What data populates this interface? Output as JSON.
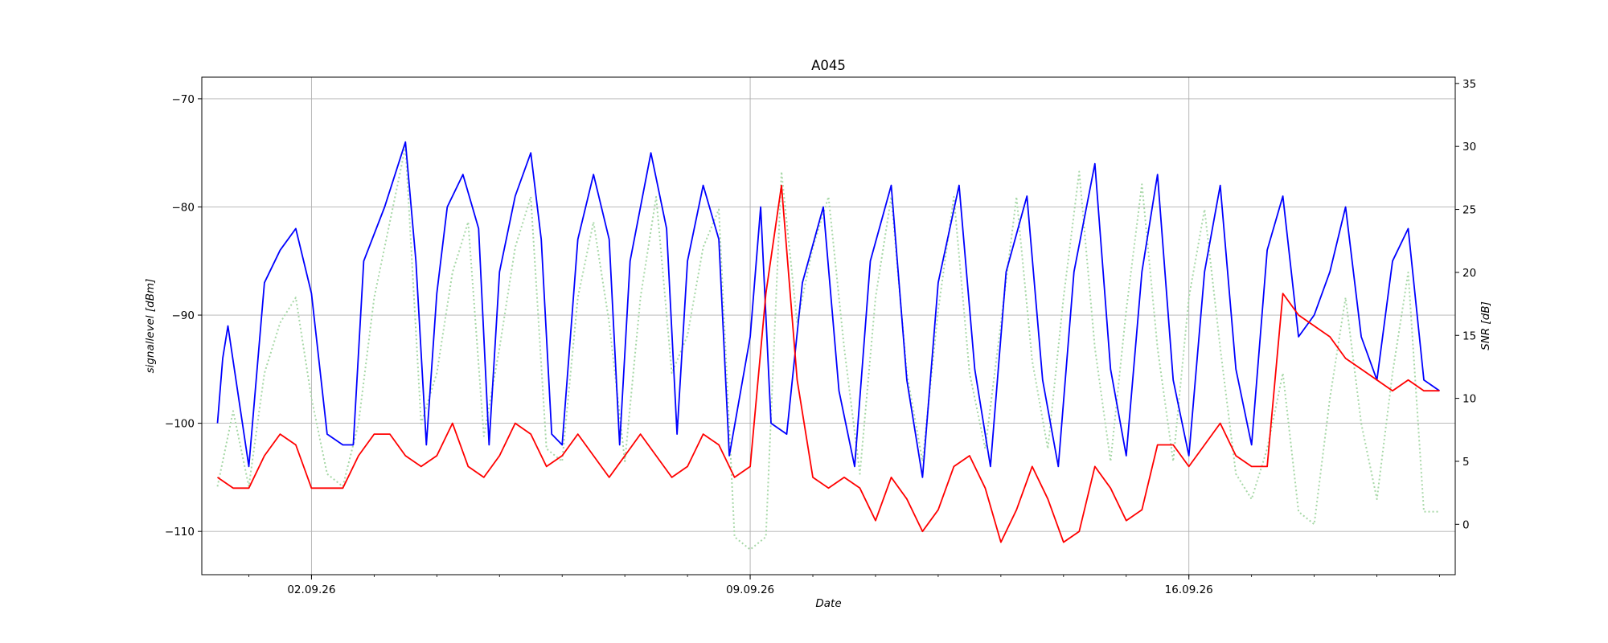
{
  "chart_data": {
    "type": "line",
    "title": "A045",
    "xlabel": "Date",
    "ylabel_left": "signallevel [dBm]",
    "ylabel_right": "SNR [dB]",
    "x_range": [
      "2026-08-31T06:00",
      "2026-09-20T06:00"
    ],
    "x_ticks": [
      "2026-09-02",
      "2026-09-09",
      "2026-09-16"
    ],
    "x_tick_labels": [
      "02.09.26",
      "09.09.26",
      "16.09.26"
    ],
    "x_minor_ticks": "daily",
    "y_left_range": [
      -114,
      -68
    ],
    "y_left_ticks": [
      -110,
      -100,
      -90,
      -80,
      -70
    ],
    "y_right_range": [
      -4,
      35.5
    ],
    "y_right_ticks": [
      0,
      5,
      10,
      15,
      20,
      25,
      30,
      35
    ],
    "grid": true,
    "colors": {
      "signal": "#0000ff",
      "signal_2": "#ff0000",
      "snr": "#a8d8a8"
    },
    "series": [
      {
        "axis": "left",
        "style": "solid",
        "color": "#0000ff",
        "values_note_hidden": true,
        "points": [
          [
            "2026-08-31T12:00",
            -100
          ],
          [
            "2026-08-31T14:00",
            -94
          ],
          [
            "2026-08-31T16:00",
            -91
          ],
          [
            "2026-09-01T00:00",
            -104
          ],
          [
            "2026-09-01T06:00",
            -87
          ],
          [
            "2026-09-01T12:00",
            -84
          ],
          [
            "2026-09-01T18:00",
            -82
          ],
          [
            "2026-09-02T00:00",
            -88
          ],
          [
            "2026-09-02T06:00",
            -101
          ],
          [
            "2026-09-02T12:00",
            -102
          ],
          [
            "2026-09-02T16:00",
            -102
          ],
          [
            "2026-09-02T20:00",
            -85
          ],
          [
            "2026-09-03T04:00",
            -80
          ],
          [
            "2026-09-03T12:00",
            -74
          ],
          [
            "2026-09-03T16:00",
            -85
          ],
          [
            "2026-09-03T20:00",
            -102
          ],
          [
            "2026-09-04T00:00",
            -88
          ],
          [
            "2026-09-04T04:00",
            -80
          ],
          [
            "2026-09-04T10:00",
            -77
          ],
          [
            "2026-09-04T16:00",
            -82
          ],
          [
            "2026-09-04T20:00",
            -102
          ],
          [
            "2026-09-05T00:00",
            -86
          ],
          [
            "2026-09-05T06:00",
            -79
          ],
          [
            "2026-09-05T12:00",
            -75
          ],
          [
            "2026-09-05T16:00",
            -83
          ],
          [
            "2026-09-05T20:00",
            -101
          ],
          [
            "2026-09-06T00:00",
            -102
          ],
          [
            "2026-09-06T06:00",
            -83
          ],
          [
            "2026-09-06T12:00",
            -77
          ],
          [
            "2026-09-06T18:00",
            -83
          ],
          [
            "2026-09-06T22:00",
            -102
          ],
          [
            "2026-09-07T02:00",
            -85
          ],
          [
            "2026-09-07T10:00",
            -75
          ],
          [
            "2026-09-07T16:00",
            -82
          ],
          [
            "2026-09-07T20:00",
            -101
          ],
          [
            "2026-09-08T00:00",
            -85
          ],
          [
            "2026-09-08T06:00",
            -78
          ],
          [
            "2026-09-08T12:00",
            -83
          ],
          [
            "2026-09-08T16:00",
            -103
          ],
          [
            "2026-09-09T00:00",
            -92
          ],
          [
            "2026-09-09T04:00",
            -80
          ],
          [
            "2026-09-09T08:00",
            -100
          ],
          [
            "2026-09-09T14:00",
            -101
          ],
          [
            "2026-09-09T20:00",
            -87
          ],
          [
            "2026-09-10T04:00",
            -80
          ],
          [
            "2026-09-10T10:00",
            -97
          ],
          [
            "2026-09-10T16:00",
            -104
          ],
          [
            "2026-09-10T22:00",
            -85
          ],
          [
            "2026-09-11T06:00",
            -78
          ],
          [
            "2026-09-11T12:00",
            -96
          ],
          [
            "2026-09-11T18:00",
            -105
          ],
          [
            "2026-09-12T00:00",
            -87
          ],
          [
            "2026-09-12T08:00",
            -78
          ],
          [
            "2026-09-12T14:00",
            -95
          ],
          [
            "2026-09-12T20:00",
            -104
          ],
          [
            "2026-09-13T02:00",
            -86
          ],
          [
            "2026-09-13T10:00",
            -79
          ],
          [
            "2026-09-13T16:00",
            -96
          ],
          [
            "2026-09-13T22:00",
            -104
          ],
          [
            "2026-09-14T04:00",
            -86
          ],
          [
            "2026-09-14T12:00",
            -76
          ],
          [
            "2026-09-14T18:00",
            -95
          ],
          [
            "2026-09-15T00:00",
            -103
          ],
          [
            "2026-09-15T06:00",
            -86
          ],
          [
            "2026-09-15T12:00",
            -77
          ],
          [
            "2026-09-15T18:00",
            -96
          ],
          [
            "2026-09-16T00:00",
            -103
          ],
          [
            "2026-09-16T06:00",
            -86
          ],
          [
            "2026-09-16T12:00",
            -78
          ],
          [
            "2026-09-16T18:00",
            -95
          ],
          [
            "2026-09-17T00:00",
            -102
          ],
          [
            "2026-09-17T06:00",
            -84
          ],
          [
            "2026-09-17T12:00",
            -79
          ],
          [
            "2026-09-17T18:00",
            -92
          ],
          [
            "2026-09-18T00:00",
            -90
          ],
          [
            "2026-09-18T06:00",
            -86
          ],
          [
            "2026-09-18T12:00",
            -80
          ],
          [
            "2026-09-18T18:00",
            -92
          ],
          [
            "2026-09-19T00:00",
            -96
          ],
          [
            "2026-09-19T06:00",
            -85
          ],
          [
            "2026-09-19T12:00",
            -82
          ],
          [
            "2026-09-19T18:00",
            -96
          ],
          [
            "2026-09-20T00:00",
            -97
          ]
        ]
      },
      {
        "axis": "left",
        "style": "solid",
        "color": "#ff0000",
        "points": [
          [
            "2026-08-31T12:00",
            -105
          ],
          [
            "2026-08-31T18:00",
            -106
          ],
          [
            "2026-09-01T00:00",
            -106
          ],
          [
            "2026-09-01T06:00",
            -103
          ],
          [
            "2026-09-01T12:00",
            -101
          ],
          [
            "2026-09-01T18:00",
            -102
          ],
          [
            "2026-09-02T00:00",
            -106
          ],
          [
            "2026-09-02T06:00",
            -106
          ],
          [
            "2026-09-02T12:00",
            -106
          ],
          [
            "2026-09-02T18:00",
            -103
          ],
          [
            "2026-09-03T00:00",
            -101
          ],
          [
            "2026-09-03T06:00",
            -101
          ],
          [
            "2026-09-03T12:00",
            -103
          ],
          [
            "2026-09-03T18:00",
            -104
          ],
          [
            "2026-09-04T00:00",
            -103
          ],
          [
            "2026-09-04T06:00",
            -100
          ],
          [
            "2026-09-04T12:00",
            -104
          ],
          [
            "2026-09-04T18:00",
            -105
          ],
          [
            "2026-09-05T00:00",
            -103
          ],
          [
            "2026-09-05T06:00",
            -100
          ],
          [
            "2026-09-05T12:00",
            -101
          ],
          [
            "2026-09-05T18:00",
            -104
          ],
          [
            "2026-09-06T00:00",
            -103
          ],
          [
            "2026-09-06T06:00",
            -101
          ],
          [
            "2026-09-06T12:00",
            -103
          ],
          [
            "2026-09-06T18:00",
            -105
          ],
          [
            "2026-09-07T00:00",
            -103
          ],
          [
            "2026-09-07T06:00",
            -101
          ],
          [
            "2026-09-07T12:00",
            -103
          ],
          [
            "2026-09-07T18:00",
            -105
          ],
          [
            "2026-09-08T00:00",
            -104
          ],
          [
            "2026-09-08T06:00",
            -101
          ],
          [
            "2026-09-08T12:00",
            -102
          ],
          [
            "2026-09-08T18:00",
            -105
          ],
          [
            "2026-09-09T00:00",
            -104
          ],
          [
            "2026-09-09T06:00",
            -88
          ],
          [
            "2026-09-09T12:00",
            -78
          ],
          [
            "2026-09-09T18:00",
            -96
          ],
          [
            "2026-09-10T00:00",
            -105
          ],
          [
            "2026-09-10T06:00",
            -106
          ],
          [
            "2026-09-10T12:00",
            -105
          ],
          [
            "2026-09-10T18:00",
            -106
          ],
          [
            "2026-09-11T00:00",
            -109
          ],
          [
            "2026-09-11T06:00",
            -105
          ],
          [
            "2026-09-11T12:00",
            -107
          ],
          [
            "2026-09-11T18:00",
            -110
          ],
          [
            "2026-09-12T00:00",
            -108
          ],
          [
            "2026-09-12T06:00",
            -104
          ],
          [
            "2026-09-12T12:00",
            -103
          ],
          [
            "2026-09-12T18:00",
            -106
          ],
          [
            "2026-09-13T00:00",
            -111
          ],
          [
            "2026-09-13T06:00",
            -108
          ],
          [
            "2026-09-13T12:00",
            -104
          ],
          [
            "2026-09-13T18:00",
            -107
          ],
          [
            "2026-09-14T00:00",
            -111
          ],
          [
            "2026-09-14T06:00",
            -110
          ],
          [
            "2026-09-14T12:00",
            -104
          ],
          [
            "2026-09-14T18:00",
            -106
          ],
          [
            "2026-09-15T00:00",
            -109
          ],
          [
            "2026-09-15T06:00",
            -108
          ],
          [
            "2026-09-15T12:00",
            -102
          ],
          [
            "2026-09-15T18:00",
            -102
          ],
          [
            "2026-09-16T00:00",
            -104
          ],
          [
            "2026-09-16T06:00",
            -102
          ],
          [
            "2026-09-16T12:00",
            -100
          ],
          [
            "2026-09-16T18:00",
            -103
          ],
          [
            "2026-09-17T00:00",
            -104
          ],
          [
            "2026-09-17T06:00",
            -104
          ],
          [
            "2026-09-17T12:00",
            -88
          ],
          [
            "2026-09-17T18:00",
            -90
          ],
          [
            "2026-09-18T00:00",
            -91
          ],
          [
            "2026-09-18T06:00",
            -92
          ],
          [
            "2026-09-18T12:00",
            -94
          ],
          [
            "2026-09-18T18:00",
            -95
          ],
          [
            "2026-09-19T00:00",
            -96
          ],
          [
            "2026-09-19T06:00",
            -97
          ],
          [
            "2026-09-19T12:00",
            -96
          ],
          [
            "2026-09-19T18:00",
            -97
          ],
          [
            "2026-09-20T00:00",
            -97
          ]
        ]
      },
      {
        "axis": "right",
        "style": "dotted",
        "color": "#a8d8a8",
        "points": [
          [
            "2026-08-31T12:00",
            3
          ],
          [
            "2026-08-31T18:00",
            9
          ],
          [
            "2026-09-01T00:00",
            3
          ],
          [
            "2026-09-01T06:00",
            12
          ],
          [
            "2026-09-01T12:00",
            16
          ],
          [
            "2026-09-01T18:00",
            18
          ],
          [
            "2026-09-02T00:00",
            10
          ],
          [
            "2026-09-02T06:00",
            4
          ],
          [
            "2026-09-02T12:00",
            3
          ],
          [
            "2026-09-02T18:00",
            8
          ],
          [
            "2026-09-03T00:00",
            18
          ],
          [
            "2026-09-03T06:00",
            24
          ],
          [
            "2026-09-03T12:00",
            30
          ],
          [
            "2026-09-03T18:00",
            8
          ],
          [
            "2026-09-04T00:00",
            12
          ],
          [
            "2026-09-04T06:00",
            20
          ],
          [
            "2026-09-04T12:00",
            24
          ],
          [
            "2026-09-04T18:00",
            7
          ],
          [
            "2026-09-05T00:00",
            14
          ],
          [
            "2026-09-05T06:00",
            22
          ],
          [
            "2026-09-05T12:00",
            26
          ],
          [
            "2026-09-05T18:00",
            6
          ],
          [
            "2026-09-06T00:00",
            5
          ],
          [
            "2026-09-06T06:00",
            18
          ],
          [
            "2026-09-06T12:00",
            24
          ],
          [
            "2026-09-06T18:00",
            16
          ],
          [
            "2026-09-07T00:00",
            5
          ],
          [
            "2026-09-07T06:00",
            18
          ],
          [
            "2026-09-07T12:00",
            26
          ],
          [
            "2026-09-07T18:00",
            12
          ],
          [
            "2026-09-08T00:00",
            15
          ],
          [
            "2026-09-08T06:00",
            22
          ],
          [
            "2026-09-08T12:00",
            25
          ],
          [
            "2026-09-08T18:00",
            -1
          ],
          [
            "2026-09-09T00:00",
            -2
          ],
          [
            "2026-09-09T06:00",
            -1
          ],
          [
            "2026-09-09T12:00",
            28
          ],
          [
            "2026-09-09T18:00",
            16
          ],
          [
            "2026-09-10T00:00",
            22
          ],
          [
            "2026-09-10T06:00",
            26
          ],
          [
            "2026-09-10T12:00",
            14
          ],
          [
            "2026-09-10T18:00",
            4
          ],
          [
            "2026-09-11T00:00",
            18
          ],
          [
            "2026-09-11T06:00",
            26
          ],
          [
            "2026-09-11T12:00",
            12
          ],
          [
            "2026-09-11T18:00",
            5
          ],
          [
            "2026-09-12T00:00",
            17
          ],
          [
            "2026-09-12T06:00",
            26
          ],
          [
            "2026-09-12T12:00",
            12
          ],
          [
            "2026-09-12T18:00",
            6
          ],
          [
            "2026-09-13T00:00",
            16
          ],
          [
            "2026-09-13T06:00",
            26
          ],
          [
            "2026-09-13T12:00",
            13
          ],
          [
            "2026-09-13T18:00",
            6
          ],
          [
            "2026-09-14T00:00",
            18
          ],
          [
            "2026-09-14T06:00",
            28
          ],
          [
            "2026-09-14T12:00",
            14
          ],
          [
            "2026-09-14T18:00",
            5
          ],
          [
            "2026-09-15T00:00",
            17
          ],
          [
            "2026-09-15T06:00",
            27
          ],
          [
            "2026-09-15T12:00",
            14
          ],
          [
            "2026-09-15T18:00",
            5
          ],
          [
            "2026-09-16T00:00",
            18
          ],
          [
            "2026-09-16T06:00",
            25
          ],
          [
            "2026-09-16T12:00",
            14
          ],
          [
            "2026-09-16T18:00",
            4
          ],
          [
            "2026-09-17T00:00",
            2
          ],
          [
            "2026-09-17T06:00",
            6
          ],
          [
            "2026-09-17T12:00",
            12
          ],
          [
            "2026-09-17T18:00",
            1
          ],
          [
            "2026-09-18T00:00",
            0
          ],
          [
            "2026-09-18T06:00",
            10
          ],
          [
            "2026-09-18T12:00",
            18
          ],
          [
            "2026-09-18T18:00",
            8
          ],
          [
            "2026-09-19T00:00",
            2
          ],
          [
            "2026-09-19T06:00",
            12
          ],
          [
            "2026-09-19T12:00",
            20
          ],
          [
            "2026-09-19T18:00",
            1
          ],
          [
            "2026-09-20T00:00",
            1
          ]
        ]
      }
    ]
  }
}
